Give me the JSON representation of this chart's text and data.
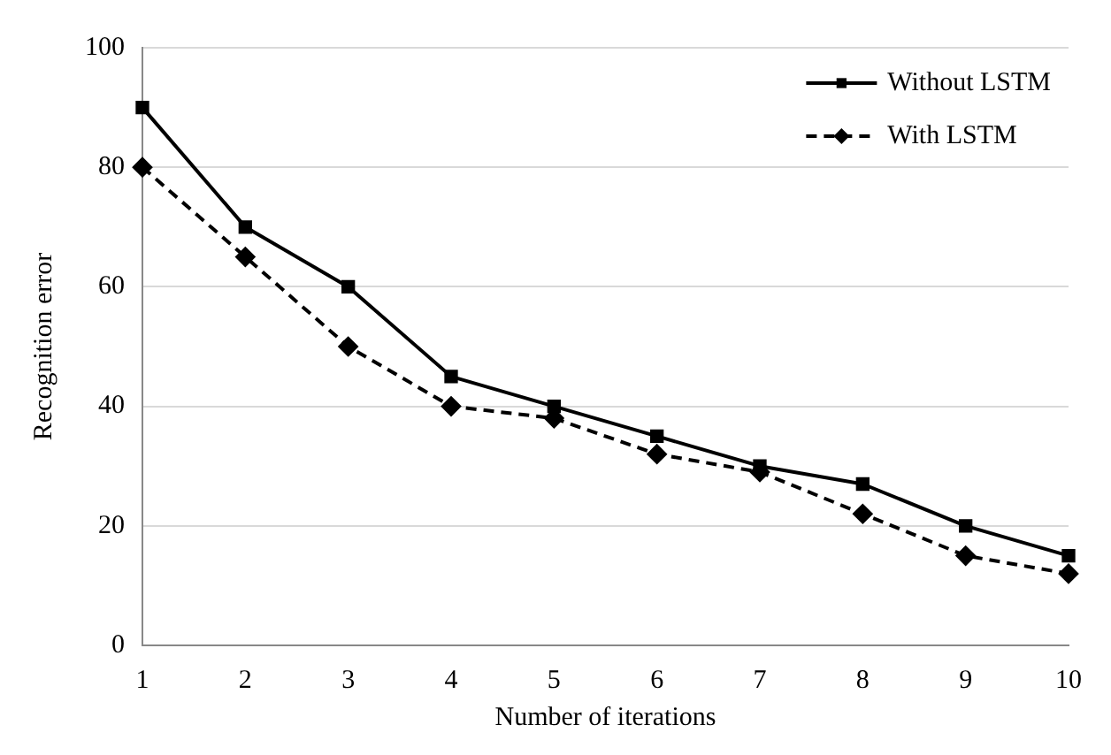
{
  "chart_data": {
    "type": "line",
    "xlabel": "Number of iterations",
    "ylabel": "Recognition error",
    "categories": [
      "1",
      "2",
      "3",
      "4",
      "5",
      "6",
      "7",
      "8",
      "9",
      "10"
    ],
    "series": [
      {
        "name": "Without LSTM",
        "color": "#000000",
        "marker": "square",
        "line_style": "solid",
        "values": [
          90,
          70,
          60,
          45,
          40,
          35,
          30,
          27,
          20,
          15
        ]
      },
      {
        "name": "With LSTM",
        "color": "#000000",
        "marker": "diamond",
        "line_style": "dashed",
        "values": [
          80,
          65,
          50,
          40,
          38,
          32,
          29,
          22,
          15,
          12
        ]
      }
    ],
    "ylim": [
      0,
      100
    ],
    "yticks": [
      0,
      20,
      40,
      60,
      80,
      100
    ],
    "grid": "y",
    "legend": "top right"
  }
}
